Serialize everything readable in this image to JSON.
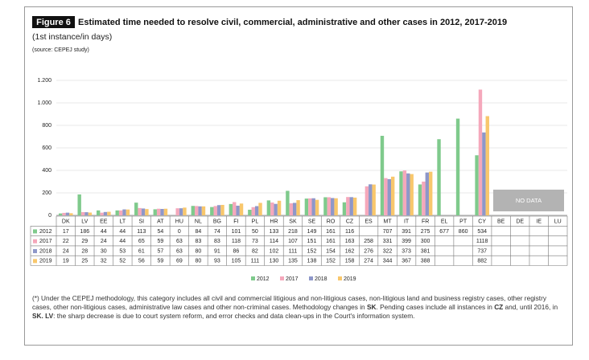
{
  "chart_data": {
    "type": "bar",
    "figure_label": "Figure 6",
    "title": "Estimated time needed to resolve civil, commercial, administrative and other cases in 2012, 2017-2019",
    "subtitle": "(1st instance/in days)",
    "source": "(source: CEPEJ study)",
    "categories": [
      "DK",
      "LV",
      "EE",
      "LT",
      "SI",
      "AT",
      "HU",
      "NL",
      "BG",
      "FI",
      "PL",
      "HR",
      "SK",
      "SE",
      "RO",
      "CZ",
      "ES",
      "MT",
      "IT",
      "FR",
      "EL",
      "PT",
      "CY",
      "BE",
      "DE",
      "IE",
      "LU"
    ],
    "series": [
      {
        "name": "2012",
        "color": "#7fca8c",
        "values": [
          17,
          186,
          44,
          44,
          113,
          54,
          0,
          84,
          74,
          101,
          50,
          133,
          218,
          149,
          161,
          116,
          null,
          707,
          391,
          275,
          677,
          860,
          534,
          null,
          null,
          null,
          null
        ]
      },
      {
        "name": "2017",
        "color": "#f5a8bb",
        "values": [
          22,
          29,
          24,
          44,
          65,
          59,
          63,
          83,
          83,
          118,
          73,
          114,
          107,
          151,
          161,
          163,
          258,
          331,
          399,
          300,
          null,
          null,
          1118,
          null,
          null,
          null,
          null
        ]
      },
      {
        "name": "2018",
        "color": "#8e97c9",
        "values": [
          24,
          28,
          30,
          53,
          61,
          57,
          63,
          80,
          91,
          86,
          82,
          102,
          111,
          152,
          154,
          162,
          276,
          322,
          373,
          381,
          null,
          null,
          737,
          null,
          null,
          null,
          null
        ]
      },
      {
        "name": "2019",
        "color": "#f8c76c",
        "values": [
          19,
          25,
          32,
          52,
          56,
          59,
          69,
          80,
          93,
          105,
          111,
          130,
          135,
          138,
          152,
          158,
          274,
          344,
          367,
          388,
          null,
          null,
          882,
          null,
          null,
          null,
          null
        ]
      }
    ],
    "ylim": [
      0,
      1200
    ],
    "yticks": [
      0,
      200,
      400,
      600,
      800,
      {
        "value": 1000,
        "label": "1.000"
      },
      {
        "value": 1200,
        "label": "1.200"
      }
    ],
    "grid": true,
    "annotation": "NO DATA",
    "footnote": [
      {
        "text": "(*) Under the CEPEJ methodology, this category includes all civil and commercial litigious and non-litigious cases, non-litigious land and business registry cases, other registry cases, other non-litigious cases, administrative law cases and other non-criminal cases. Methodology changes in ",
        "bold": false
      },
      {
        "text": "SK",
        "bold": true
      },
      {
        "text": ". Pending cases include all instances in ",
        "bold": false
      },
      {
        "text": "CZ",
        "bold": true
      },
      {
        "text": " and, until 2016, in ",
        "bold": false
      },
      {
        "text": "SK. LV",
        "bold": true
      },
      {
        "text": ": the sharp decrease is due to court system reform, and error checks and data clean-ups in the Court's information system.",
        "bold": false
      }
    ]
  }
}
